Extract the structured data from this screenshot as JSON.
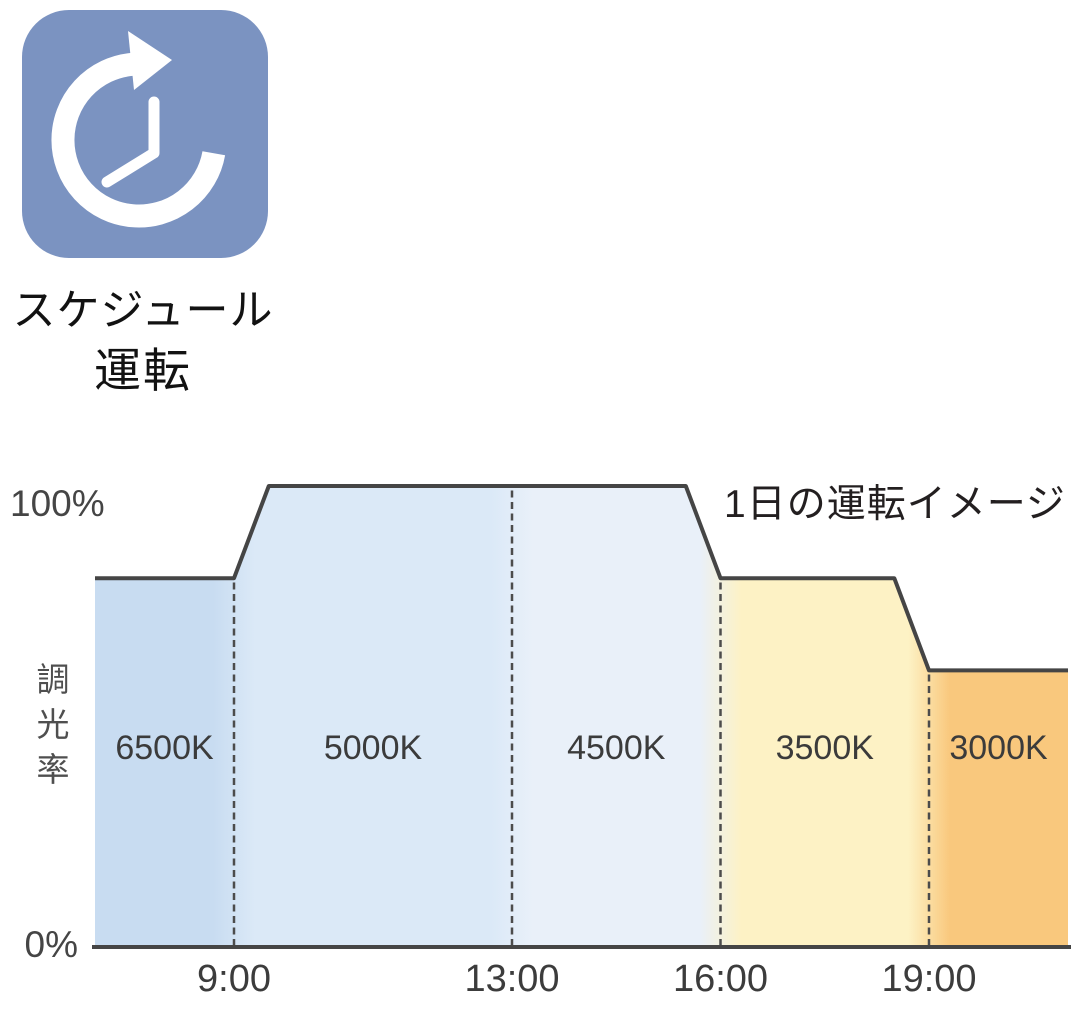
{
  "schedule_feature": {
    "icon": "timer-clock-icon",
    "icon_bg_color": "#7b93c1",
    "label_line1": "スケジュール",
    "label_line2": "運転"
  },
  "chart_data": {
    "type": "area",
    "title": "1日の運転イメージ",
    "y_axis": {
      "title": "調光率",
      "max_label": "100%",
      "min_label": "0%",
      "range_percent": [
        0,
        100
      ]
    },
    "x_axis": {
      "time_range": [
        "7:00",
        "21:00"
      ]
    },
    "x_ticks": [
      {
        "t": 9,
        "label": "9:00"
      },
      {
        "t": 13,
        "label": "13:00"
      },
      {
        "t": 16,
        "label": "16:00"
      },
      {
        "t": 19,
        "label": "19:00"
      }
    ],
    "series": [
      {
        "t": 7.0,
        "dim": 80
      },
      {
        "t": 9.0,
        "dim": 80
      },
      {
        "t": 9.5,
        "dim": 100
      },
      {
        "t": 15.5,
        "dim": 100
      },
      {
        "t": 16.0,
        "dim": 80
      },
      {
        "t": 18.5,
        "dim": 80
      },
      {
        "t": 19.0,
        "dim": 60
      },
      {
        "t": 21.0,
        "dim": 60
      }
    ],
    "sections": [
      {
        "label": "6500K",
        "t_start": 7,
        "t_end": 9,
        "color": "#c8dcf1"
      },
      {
        "label": "5000K",
        "t_start": 9,
        "t_end": 13,
        "color": "#dbe9f7"
      },
      {
        "label": "4500K",
        "t_start": 13,
        "t_end": 16,
        "color": "#e9f0f9"
      },
      {
        "label": "3500K",
        "t_start": 16,
        "t_end": 19,
        "color": "#fdf2c5"
      },
      {
        "label": "3000K",
        "t_start": 19,
        "t_end": 21,
        "color": "#f9c87d"
      }
    ],
    "colors": {
      "outline": "#454545",
      "baseline": "#454545",
      "dashed_gridline": "#4c4c4c"
    },
    "legend_position": "none",
    "grid": "dashed-vertical-at-ticks"
  }
}
